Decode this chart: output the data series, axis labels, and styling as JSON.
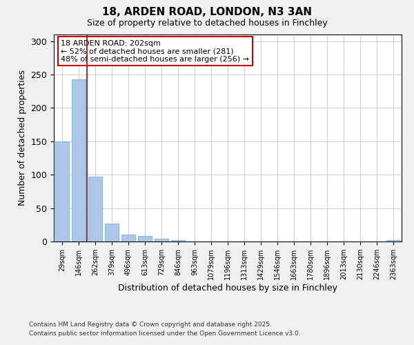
{
  "title1": "18, ARDEN ROAD, LONDON, N3 3AN",
  "title2": "Size of property relative to detached houses in Finchley",
  "xlabel": "Distribution of detached houses by size in Finchley",
  "ylabel": "Number of detached properties",
  "categories": [
    "29sqm",
    "146sqm",
    "262sqm",
    "379sqm",
    "496sqm",
    "613sqm",
    "729sqm",
    "846sqm",
    "963sqm",
    "1079sqm",
    "1196sqm",
    "1313sqm",
    "1429sqm",
    "1546sqm",
    "1663sqm",
    "1780sqm",
    "1896sqm",
    "2013sqm",
    "2130sqm",
    "2246sqm",
    "2363sqm"
  ],
  "values": [
    150,
    243,
    97,
    27,
    10,
    8,
    4,
    2,
    0,
    0,
    0,
    0,
    0,
    0,
    0,
    0,
    0,
    0,
    0,
    0,
    2
  ],
  "bar_color": "#aec6e8",
  "bar_edge_color": "#7aaed4",
  "vline_color": "#aa0000",
  "vline_index": 2,
  "annotation_text": "18 ARDEN ROAD: 202sqm\n← 52% of detached houses are smaller (281)\n48% of semi-detached houses are larger (256) →",
  "annotation_box_color": "#cc0000",
  "ylim": [
    0,
    310
  ],
  "yticks": [
    0,
    50,
    100,
    150,
    200,
    250,
    300
  ],
  "footer1": "Contains HM Land Registry data © Crown copyright and database right 2025.",
  "footer2": "Contains public sector information licensed under the Open Government Licence v3.0.",
  "background_color": "#f0f0f0",
  "plot_background_color": "#ffffff",
  "grid_color": "#cccccc"
}
